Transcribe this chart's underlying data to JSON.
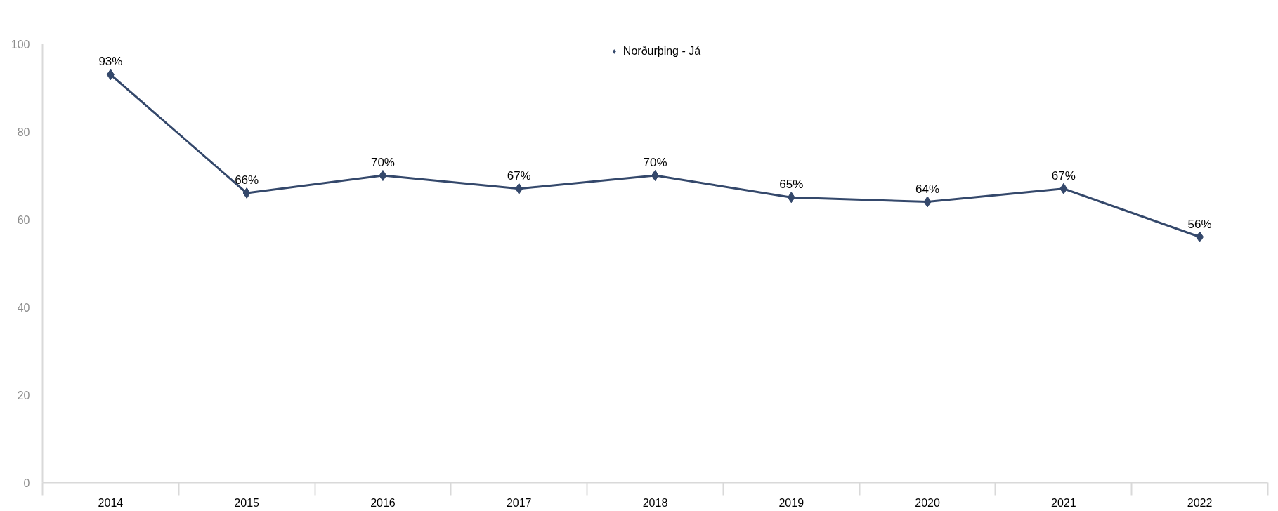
{
  "chart_data": {
    "type": "line",
    "categories": [
      "2014",
      "2015",
      "2016",
      "2017",
      "2018",
      "2019",
      "2020",
      "2021",
      "2022"
    ],
    "series": [
      {
        "name": "Norðurþing - Já",
        "color": "#34486b",
        "values": [
          93,
          66,
          70,
          67,
          70,
          65,
          64,
          67,
          56
        ],
        "value_labels": [
          "93%",
          "66%",
          "70%",
          "67%",
          "70%",
          "65%",
          "64%",
          "67%",
          "56%"
        ]
      }
    ],
    "ylim": [
      0,
      100
    ],
    "yticks": [
      0,
      20,
      40,
      60,
      80,
      100
    ],
    "grid": false,
    "legend": "top",
    "marker": "diamond",
    "line_style": "solid"
  }
}
